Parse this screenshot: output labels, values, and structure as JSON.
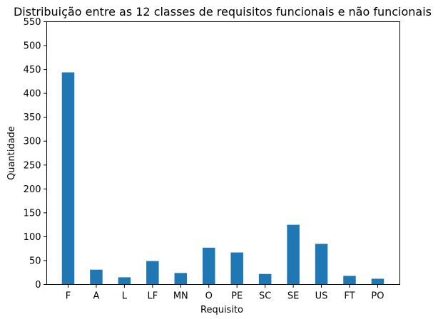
{
  "chart_data": {
    "type": "bar",
    "title": "Distribuição entre as 12 classes de requisitos funcionais e não funcionais",
    "xlabel": "Requisito",
    "ylabel": "Quantidade",
    "categories": [
      "F",
      "A",
      "L",
      "LF",
      "MN",
      "O",
      "PE",
      "SC",
      "SE",
      "US",
      "FT",
      "PO"
    ],
    "values": [
      444,
      31,
      15,
      49,
      24,
      77,
      67,
      22,
      125,
      85,
      18,
      12
    ],
    "ylim": [
      0,
      550
    ],
    "yticks": [
      "0",
      "50",
      "100",
      "150",
      "200",
      "250",
      "300",
      "350",
      "400",
      "450",
      "500",
      "550"
    ],
    "grid": false,
    "bar_color": "#1f77b4"
  }
}
